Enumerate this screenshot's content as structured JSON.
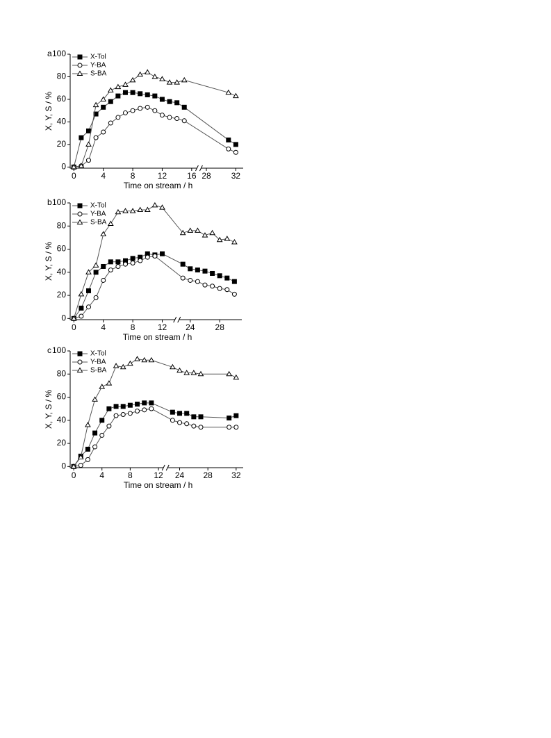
{
  "chart_data": [
    {
      "type": "line",
      "panel_label": "a",
      "xlabel": "Time on stream / h",
      "ylabel": "X, Y, S / %",
      "xlim": [
        -0.5,
        33
      ],
      "xbreak": [
        17,
        27
      ],
      "xticks": [
        0,
        4,
        8,
        12,
        16,
        28,
        32
      ],
      "ylim": [
        -1,
        100
      ],
      "yticks": [
        0,
        20,
        40,
        60,
        80,
        100
      ],
      "legend": "upper-left",
      "series": [
        {
          "name": "X-Tol",
          "color": "#000000",
          "marker": "square",
          "x": [
            0,
            1,
            2,
            3,
            4,
            5,
            6,
            7,
            8,
            9,
            10,
            11,
            12,
            13,
            14,
            15,
            31,
            32
          ],
          "values": [
            0,
            26,
            32,
            47,
            53,
            58,
            63,
            66,
            66,
            65,
            64,
            63,
            60,
            58,
            57,
            53,
            24,
            20
          ]
        },
        {
          "name": "Y-BA",
          "color": "#000000",
          "marker": "circle",
          "x": [
            0,
            1,
            2,
            3,
            4,
            5,
            6,
            7,
            8,
            9,
            10,
            11,
            12,
            13,
            14,
            15,
            31,
            32
          ],
          "values": [
            0,
            1,
            6,
            26,
            31,
            39,
            44,
            48,
            50,
            52,
            53,
            50,
            46,
            44,
            43,
            41,
            16,
            13
          ]
        },
        {
          "name": "S-BA",
          "color": "#000000",
          "marker": "triangle",
          "x": [
            0,
            1,
            2,
            3,
            4,
            5,
            6,
            7,
            8,
            9,
            10,
            11,
            12,
            13,
            14,
            15,
            31,
            32
          ],
          "values": [
            0,
            1,
            20,
            55,
            60,
            68,
            71,
            73,
            77,
            82,
            84,
            80,
            78,
            75,
            75,
            77,
            66,
            63
          ]
        }
      ]
    },
    {
      "type": "line",
      "panel_label": "b",
      "xlabel": "Time on stream / h",
      "ylabel": "X, Y, S / %",
      "xlim": [
        -0.5,
        31
      ],
      "xbreak": [
        14,
        22.2
      ],
      "xticks": [
        0,
        4,
        8,
        12,
        24,
        28
      ],
      "ylim": [
        -1,
        100
      ],
      "yticks": [
        0,
        20,
        40,
        60,
        80,
        100
      ],
      "legend": "upper-left",
      "series": [
        {
          "name": "X-Tol",
          "color": "#000000",
          "marker": "square",
          "x": [
            0,
            1,
            2,
            3,
            4,
            5,
            6,
            7,
            8,
            9,
            10,
            11,
            12,
            23,
            24,
            25,
            26,
            27,
            28,
            29,
            30
          ],
          "values": [
            0,
            9,
            24,
            40,
            45,
            49,
            49,
            50,
            52,
            53,
            56,
            55,
            56,
            47,
            43,
            42,
            41,
            39,
            37,
            35,
            32
          ]
        },
        {
          "name": "Y-BA",
          "color": "#000000",
          "marker": "circle",
          "x": [
            0,
            1,
            2,
            3,
            4,
            5,
            6,
            7,
            8,
            9,
            10,
            11,
            23,
            24,
            25,
            26,
            27,
            28,
            29,
            30
          ],
          "values": [
            0,
            2,
            10,
            18,
            33,
            42,
            45,
            47,
            48,
            50,
            53,
            54,
            35,
            33,
            32,
            29,
            28,
            26,
            25,
            21
          ]
        },
        {
          "name": "S-BA",
          "color": "#000000",
          "marker": "triangle",
          "x": [
            0,
            1,
            2,
            3,
            4,
            5,
            6,
            7,
            8,
            9,
            10,
            11,
            12,
            23,
            24,
            25,
            26,
            27,
            28,
            29,
            30
          ],
          "values": [
            0,
            21,
            40,
            46,
            73,
            82,
            92,
            93,
            93,
            94,
            94,
            98,
            96,
            74,
            76,
            76,
            72,
            74,
            68,
            69,
            66
          ]
        }
      ]
    },
    {
      "type": "line",
      "panel_label": "c",
      "xlabel": "Time on stream / h",
      "ylabel": "X, Y, S / %",
      "xlim": [
        -0.5,
        33
      ],
      "xbreak": [
        13,
        22
      ],
      "xticks": [
        0,
        4,
        8,
        12,
        24,
        28,
        32
      ],
      "ylim": [
        -1,
        100
      ],
      "yticks": [
        0,
        20,
        40,
        60,
        80,
        100
      ],
      "legend": "upper-left",
      "series": [
        {
          "name": "X-Tol",
          "color": "#000000",
          "marker": "square",
          "x": [
            0,
            1,
            2,
            3,
            4,
            5,
            6,
            7,
            8,
            9,
            10,
            11,
            23,
            24,
            25,
            26,
            27,
            31,
            32
          ],
          "values": [
            0,
            9,
            15,
            29,
            40,
            50,
            52,
            52,
            53,
            54,
            55,
            55,
            47,
            46,
            46,
            43,
            43,
            42,
            44
          ]
        },
        {
          "name": "Y-BA",
          "color": "#000000",
          "marker": "circle",
          "x": [
            0,
            1,
            2,
            3,
            4,
            5,
            6,
            7,
            8,
            9,
            10,
            11,
            23,
            24,
            25,
            26,
            27,
            31,
            32
          ],
          "values": [
            0,
            1,
            6,
            17,
            27,
            35,
            44,
            45,
            46,
            48,
            49,
            50,
            40,
            38,
            37,
            35,
            34,
            34,
            34
          ]
        },
        {
          "name": "S-BA",
          "color": "#000000",
          "marker": "triangle",
          "x": [
            0,
            1,
            2,
            3,
            4,
            5,
            6,
            7,
            8,
            9,
            10,
            11,
            23,
            24,
            25,
            26,
            27,
            31,
            32
          ],
          "values": [
            0,
            8,
            36,
            58,
            69,
            72,
            87,
            86,
            89,
            93,
            92,
            92,
            86,
            83,
            81,
            81,
            80,
            80,
            77
          ]
        }
      ]
    }
  ]
}
